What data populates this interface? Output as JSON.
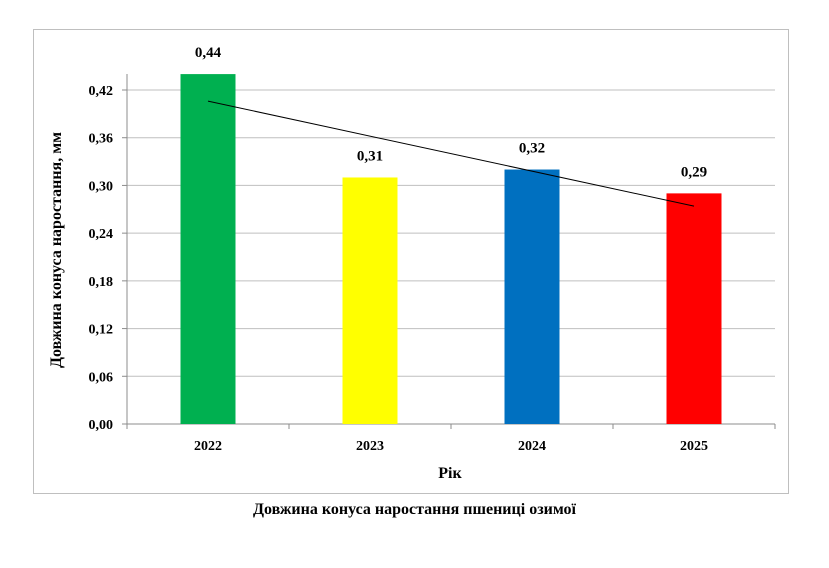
{
  "chart_data": {
    "type": "bar",
    "categories": [
      "2022",
      "2023",
      "2024",
      "2025"
    ],
    "values": [
      0.44,
      0.31,
      0.32,
      0.29
    ],
    "value_labels": [
      "0,44",
      "0,31",
      "0,32",
      "0,29"
    ],
    "bar_colors": [
      "#00b050",
      "#ffff00",
      "#0070c0",
      "#ff0000"
    ],
    "xlabel": "Рік",
    "ylabel": "Довжина конуса наростання, мм",
    "ylim": [
      0,
      0.42
    ],
    "y_ticks": [
      0,
      0.06,
      0.12,
      0.18,
      0.24,
      0.3,
      0.36,
      0.42
    ],
    "y_tick_labels": [
      "0,00",
      "0,06",
      "0,12",
      "0,18",
      "0,24",
      "0,30",
      "0,36",
      "0,42"
    ],
    "grid": "horizontal",
    "trendline": "linear"
  },
  "caption": "Довжина конуса наростання пшениці озимої"
}
